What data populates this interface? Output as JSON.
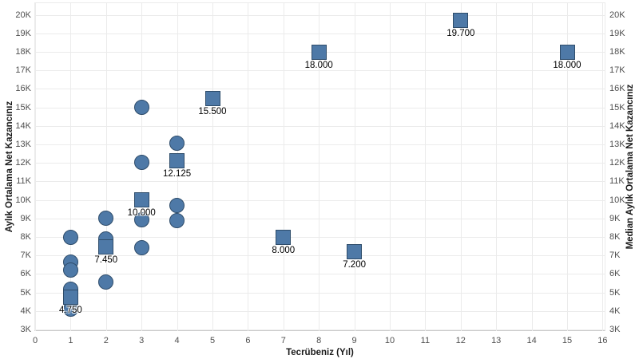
{
  "chart_data": {
    "type": "scatter",
    "title": "",
    "xlabel": "Tecrübeniz (Yıl)",
    "ylabel_left": "Aylık Ortalama Net Kazancınız",
    "ylabel_right": "Median Aylık Ortalama Net Kazancınız",
    "grid": true,
    "legend": "none",
    "axes": {
      "x": {
        "min": 0,
        "max": 16,
        "ticks": [
          0,
          1,
          2,
          3,
          4,
          5,
          6,
          7,
          8,
          9,
          10,
          11,
          12,
          13,
          14,
          15,
          16
        ]
      },
      "y": {
        "min": 3000,
        "max": 20000,
        "tick_format": "K",
        "ticks": [
          3000,
          4000,
          5000,
          6000,
          7000,
          8000,
          9000,
          10000,
          11000,
          12000,
          13000,
          14000,
          15000,
          16000,
          17000,
          18000,
          19000,
          20000
        ]
      }
    },
    "series": [
      {
        "name": "Aylık Ortalama Net Kazancınız",
        "marker": "circle",
        "points": [
          {
            "x": 1,
            "y": 8000
          },
          {
            "x": 1,
            "y": 6650
          },
          {
            "x": 1,
            "y": 6200
          },
          {
            "x": 1,
            "y": 5200
          },
          {
            "x": 1,
            "y": 4100
          },
          {
            "x": 2,
            "y": 9000
          },
          {
            "x": 2,
            "y": 7900
          },
          {
            "x": 2,
            "y": 5550
          },
          {
            "x": 3,
            "y": 15000
          },
          {
            "x": 3,
            "y": 12050
          },
          {
            "x": 3,
            "y": 8950
          },
          {
            "x": 3,
            "y": 7400
          },
          {
            "x": 4,
            "y": 13050
          },
          {
            "x": 4,
            "y": 12100
          },
          {
            "x": 4,
            "y": 9700
          },
          {
            "x": 4,
            "y": 8900
          }
        ]
      },
      {
        "name": "Median Aylık Ortalama Net Kazancınız",
        "marker": "square",
        "points": [
          {
            "x": 1,
            "y": 4750,
            "label": "4.750"
          },
          {
            "x": 2,
            "y": 7450,
            "label": "7.450"
          },
          {
            "x": 3,
            "y": 10000,
            "label": "10.000"
          },
          {
            "x": 4,
            "y": 12125,
            "label": "12.125"
          },
          {
            "x": 5,
            "y": 15500,
            "label": "15.500"
          },
          {
            "x": 7,
            "y": 8000,
            "label": "8.000"
          },
          {
            "x": 8,
            "y": 18000,
            "label": "18.000"
          },
          {
            "x": 9,
            "y": 7200,
            "label": "7.200"
          },
          {
            "x": 12,
            "y": 19700,
            "label": "19.700"
          },
          {
            "x": 15,
            "y": 18000,
            "label": "18.000"
          }
        ]
      }
    ],
    "colors": {
      "mark_fill": "#4e79a7",
      "mark_stroke": "#2e4c6a",
      "grid": "#ebebeb",
      "axis_line": "#c9c9c9",
      "tick_text": "#4f4f4f",
      "title_text": "#1a1a1a",
      "label_text": "#000000"
    }
  }
}
